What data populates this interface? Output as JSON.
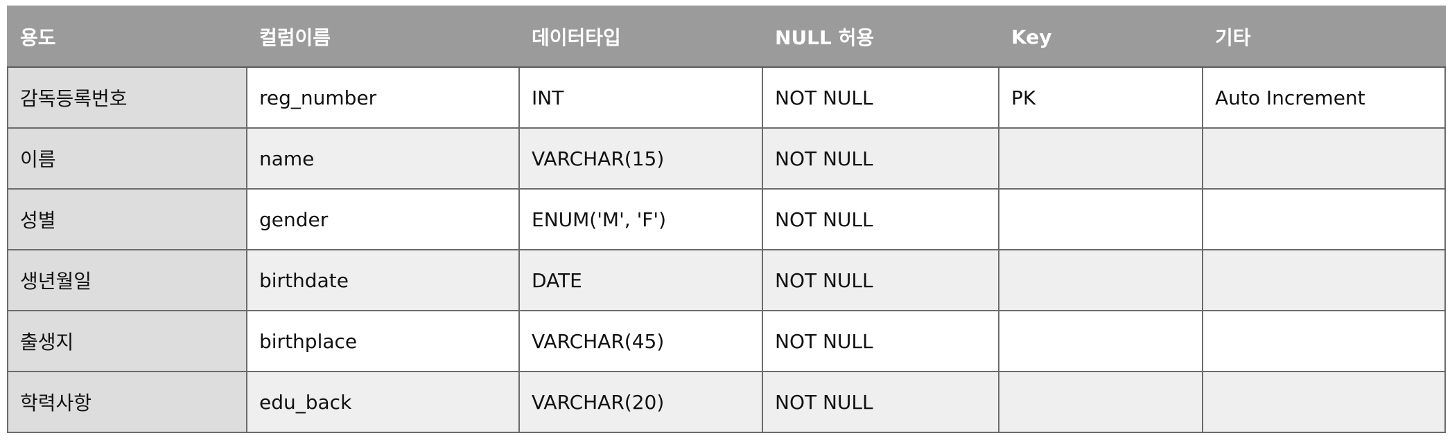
{
  "table": {
    "headers": [
      "용도",
      "컬럼이름",
      "데이터타입",
      "NULL 허용",
      "Key",
      "기타"
    ],
    "rows": [
      [
        "감독등록번호",
        "reg_number",
        "INT",
        "NOT NULL",
        "PK",
        "Auto Increment"
      ],
      [
        "이름",
        "name",
        "VARCHAR(15)",
        "NOT NULL",
        "",
        ""
      ],
      [
        "성별",
        "gender",
        "ENUM('M', 'F')",
        "NOT NULL",
        "",
        ""
      ],
      [
        "생년월일",
        "birthdate",
        "DATE",
        "NOT NULL",
        "",
        ""
      ],
      [
        "출생지",
        "birthplace",
        "VARCHAR(45)",
        "NOT NULL",
        "",
        ""
      ],
      [
        "학력사항",
        "edu_back",
        "VARCHAR(20)",
        "NOT NULL",
        "",
        ""
      ]
    ]
  },
  "colors": {
    "header_bg": "#9b9b9b",
    "header_text": "#ffffff",
    "purpose_column_bg": "#dcdddc",
    "row_alt_bg": "#efefef",
    "border": "#6b6b6b"
  }
}
